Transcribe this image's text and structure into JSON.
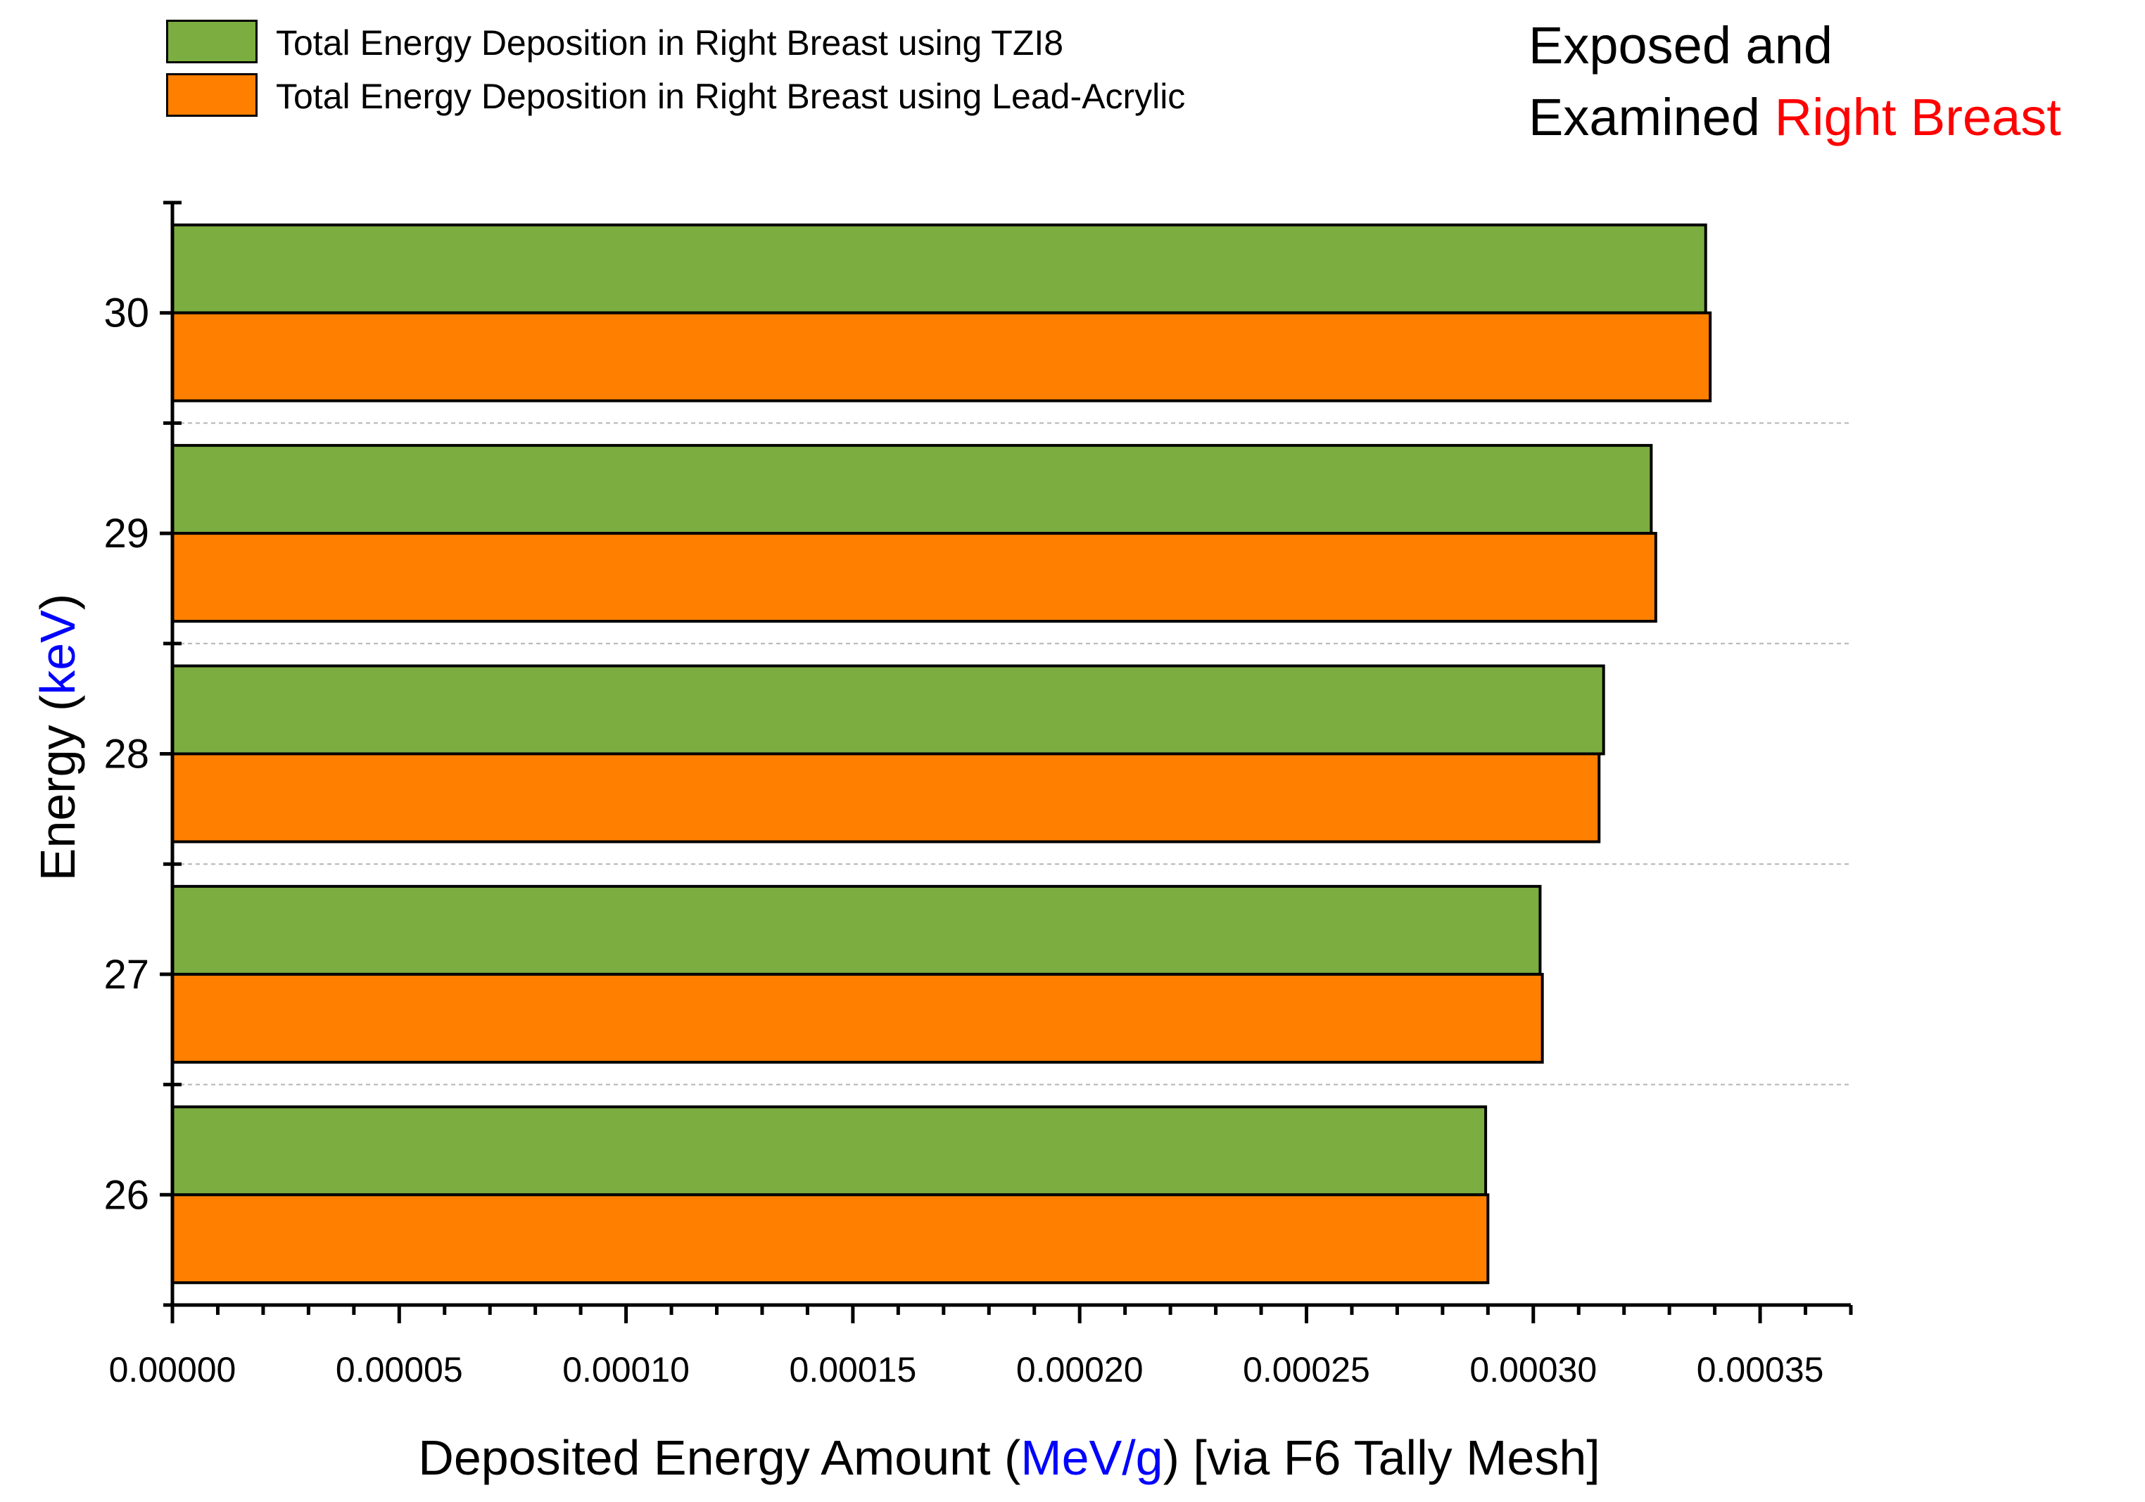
{
  "chart_data": {
    "type": "bar",
    "orientation": "horizontal",
    "categories": [
      "30",
      "29",
      "28",
      "27",
      "26"
    ],
    "series": [
      {
        "name": "Total Energy Deposition in Right Breast using TZI8",
        "color": "#7cad40",
        "values": [
          0.000338,
          0.000326,
          0.0003155,
          0.0003015,
          0.0002895
        ]
      },
      {
        "name": "Total Energy Deposition in Right Breast using Lead-Acrylic",
        "color": "#ff8000",
        "values": [
          0.000339,
          0.000327,
          0.0003145,
          0.000302,
          0.00029
        ]
      }
    ],
    "xticks": [
      "0.00000",
      "0.00005",
      "0.00010",
      "0.00015",
      "0.00020",
      "0.00025",
      "0.00030",
      "0.00035"
    ],
    "xlim": [
      0,
      0.00037
    ],
    "xlabel": {
      "prefix": "Deposited Energy Amount (",
      "unit": "MeV/g",
      "suffix": ") [via F6 Tally Mesh]"
    },
    "ylabel": {
      "prefix": "Energy (",
      "unit": "keV",
      "suffix": ")"
    },
    "note": {
      "line1": "Exposed and",
      "line2_prefix": "Examined ",
      "line2_highlight": "Right Breast"
    },
    "legend_position": "top-left",
    "grid": "dashed horizontal separators between categories"
  }
}
